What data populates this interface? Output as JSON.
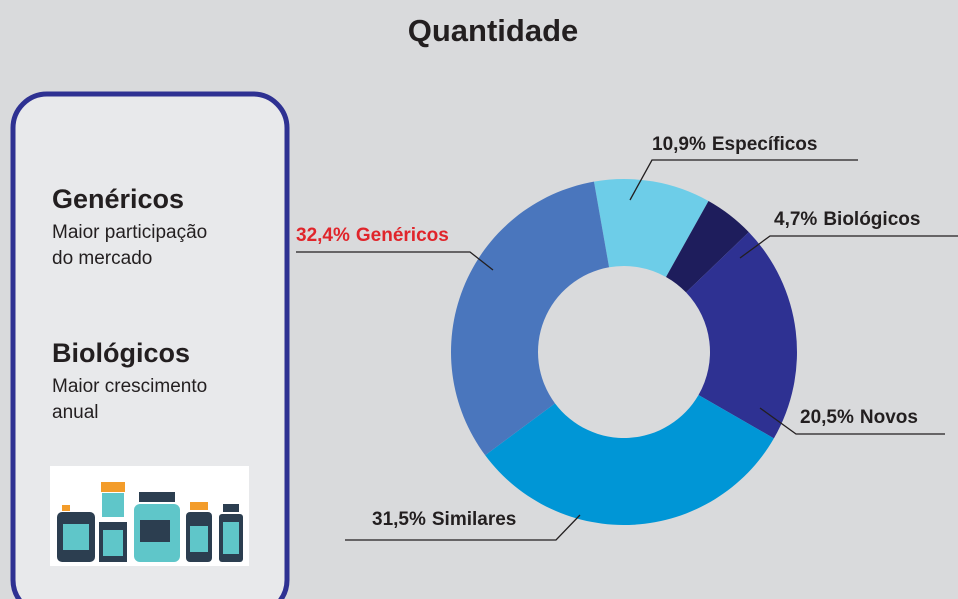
{
  "title": "Quantidade",
  "panel": {
    "items": [
      {
        "heading": "Genéricos",
        "lines": [
          "Maior participação",
          "do mercado"
        ]
      },
      {
        "heading": "Biológicos",
        "lines": [
          "Maior crescimento",
          "anual"
        ]
      }
    ]
  },
  "chart_data": {
    "type": "pie",
    "categories": [
      "Específicos",
      "Biológicos",
      "Novos",
      "Similares",
      "Genéricos"
    ],
    "values": [
      10.9,
      4.7,
      20.5,
      31.5,
      32.4
    ],
    "value_labels": [
      "10,9%",
      "4,7%",
      "20,5%",
      "31,5%",
      "32,4%"
    ],
    "colors": [
      "#6dcde8",
      "#1e1d5c",
      "#2e3192",
      "#0096d6",
      "#4a76bd"
    ],
    "label_colors": [
      "#231f20",
      "#231f20",
      "#231f20",
      "#231f20",
      "#e0252b"
    ]
  }
}
